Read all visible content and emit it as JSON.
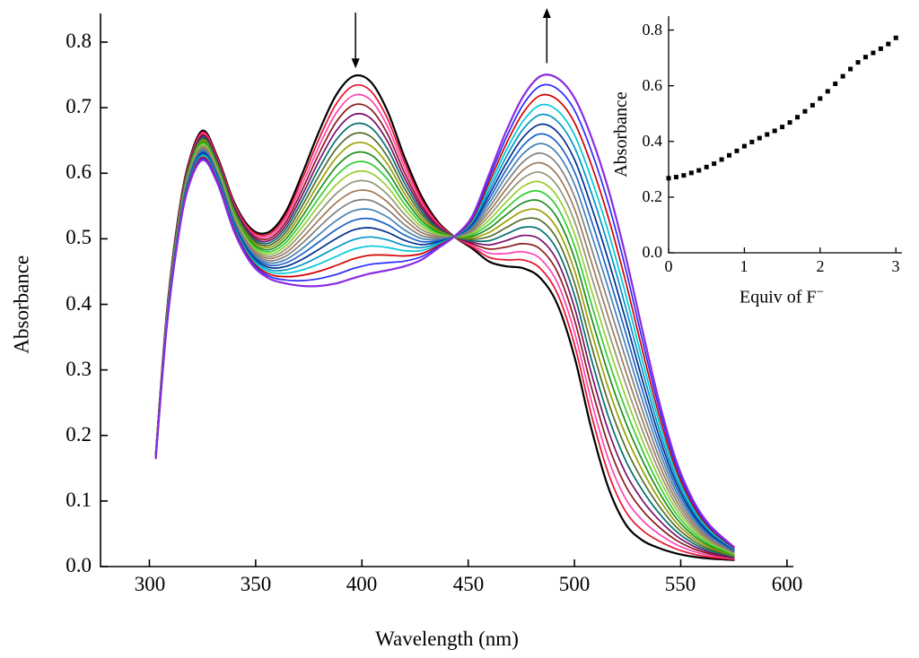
{
  "figure": {
    "background": "#ffffff"
  },
  "chart_data": [
    {
      "type": "line",
      "role": "main-spectra-plot",
      "title": "",
      "xlabel": "Wavelength (nm)",
      "ylabel": "Absorbance",
      "xlim": [
        277,
        603
      ],
      "ylim": [
        0,
        0.8
      ],
      "grid": false,
      "legend": null,
      "xticks": [
        300,
        350,
        400,
        450,
        500,
        550,
        600
      ],
      "x_tick_labels": [
        "300",
        "350",
        "400",
        "450",
        "500",
        "550",
        "600"
      ],
      "yticks": [
        0,
        0.1,
        0.2,
        0.3,
        0.4,
        0.5,
        0.6,
        0.7,
        0.8
      ],
      "y_tick_labels": [
        "0.0",
        "0.1",
        "0.2",
        "0.3",
        "0.4",
        "0.5",
        "0.6",
        "0.7",
        "0.8"
      ],
      "annotations": [
        {
          "type": "arrow",
          "direction": "down",
          "x": 397,
          "y_tail": 0.845,
          "y_head": 0.76,
          "meaning": "absorption band at ~397 nm decreases during titration"
        },
        {
          "type": "arrow",
          "direction": "up",
          "x": 487,
          "y_tail": 0.768,
          "y_head": 0.852,
          "meaning": "absorption band at ~487 nm increases during titration"
        }
      ],
      "series_model": {
        "description": "UV-Vis titration spectra family; n_curves spectra linearly interpolated between initial_spectrum (0 equiv F-) and final_spectrum (3 equiv F-); isosbestic point near 445 nm at A ~0.50",
        "n_curves": 22,
        "wavelengths_nm": [
          303,
          308,
          313,
          318,
          325,
          332,
          340,
          348,
          356,
          364,
          372,
          380,
          388,
          396,
          404,
          412,
          420,
          428,
          436,
          444,
          452,
          460,
          468,
          476,
          484,
          492,
          500,
          508,
          516,
          524,
          532,
          540,
          548,
          556,
          564,
          575
        ],
        "initial_spectrum": [
          0.17,
          0.38,
          0.52,
          0.61,
          0.665,
          0.625,
          0.555,
          0.515,
          0.51,
          0.54,
          0.6,
          0.665,
          0.72,
          0.748,
          0.74,
          0.695,
          0.625,
          0.565,
          0.525,
          0.502,
          0.485,
          0.465,
          0.458,
          0.455,
          0.44,
          0.4,
          0.32,
          0.21,
          0.12,
          0.065,
          0.04,
          0.028,
          0.02,
          0.015,
          0.012,
          0.01
        ],
        "final_spectrum": [
          0.165,
          0.36,
          0.49,
          0.575,
          0.62,
          0.585,
          0.51,
          0.462,
          0.44,
          0.432,
          0.428,
          0.428,
          0.432,
          0.44,
          0.447,
          0.452,
          0.458,
          0.468,
          0.486,
          0.505,
          0.535,
          0.6,
          0.665,
          0.718,
          0.748,
          0.745,
          0.715,
          0.655,
          0.575,
          0.475,
          0.36,
          0.25,
          0.16,
          0.1,
          0.062,
          0.03
        ],
        "colors": [
          "#000000",
          "#e8112d",
          "#ff44b7",
          "#8b1a1a",
          "#7a0f6e",
          "#006e6e",
          "#556b2f",
          "#9aa000",
          "#1e8c1e",
          "#32cd32",
          "#9acd32",
          "#8f9779",
          "#a0785a",
          "#808080",
          "#4682b4",
          "#1e64c8",
          "#002f8c",
          "#0096c8",
          "#00c8d7",
          "#d40000",
          "#2b2bff",
          "#8a2be2"
        ]
      }
    },
    {
      "type": "scatter",
      "role": "inset-titration-curve",
      "xlabel_base": "Equiv of F",
      "xlabel_sup": "−",
      "ylabel": "Absorbance",
      "xlim": [
        0,
        3.08
      ],
      "ylim": [
        0,
        0.85
      ],
      "marker": "square",
      "color": "#000000",
      "xticks": [
        0,
        1,
        2,
        3
      ],
      "x_tick_labels": [
        "0",
        "1",
        "2",
        "3"
      ],
      "yticks": [
        0,
        0.2,
        0.4,
        0.6,
        0.8
      ],
      "y_tick_labels": [
        "0.0",
        "0.2",
        "0.4",
        "0.6",
        "0.8"
      ],
      "x": [
        0,
        0.1,
        0.2,
        0.3,
        0.4,
        0.5,
        0.6,
        0.7,
        0.8,
        0.9,
        1.0,
        1.1,
        1.2,
        1.3,
        1.4,
        1.5,
        1.6,
        1.7,
        1.8,
        1.9,
        2.0,
        2.1,
        2.2,
        2.3,
        2.4,
        2.5,
        2.6,
        2.7,
        2.8,
        2.9,
        3.0
      ],
      "y": [
        0.268,
        0.272,
        0.278,
        0.287,
        0.296,
        0.308,
        0.32,
        0.335,
        0.35,
        0.366,
        0.383,
        0.398,
        0.412,
        0.425,
        0.438,
        0.452,
        0.468,
        0.487,
        0.508,
        0.53,
        0.554,
        0.58,
        0.607,
        0.634,
        0.66,
        0.684,
        0.703,
        0.718,
        0.733,
        0.75,
        0.772
      ]
    }
  ]
}
